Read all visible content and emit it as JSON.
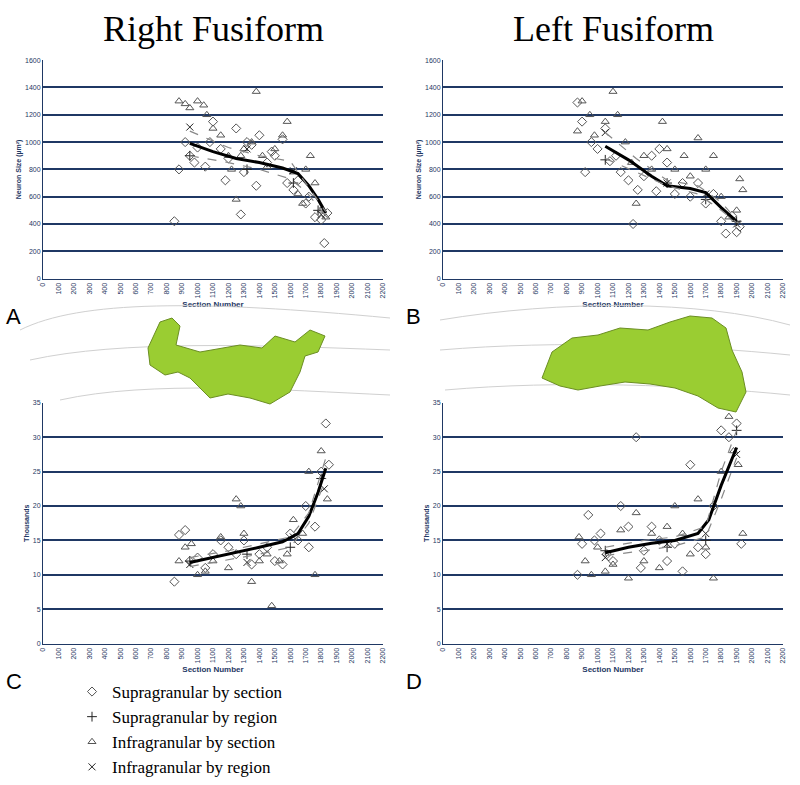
{
  "chart_data": [
    {
      "type": "scatter",
      "title": "Right Fusiform",
      "annotations": [
        "A"
      ],
      "xlabel": "Section Number",
      "ylabel": "Neuron Size (µm²)",
      "xlim": [
        0,
        2200
      ],
      "xticks": [
        0,
        100,
        200,
        300,
        400,
        500,
        600,
        700,
        800,
        900,
        1000,
        1100,
        1200,
        1300,
        1400,
        1500,
        1600,
        1700,
        1800,
        1900,
        2000,
        2100,
        2200
      ],
      "ylim": [
        0,
        1600
      ],
      "yticks": [
        0,
        200,
        400,
        600,
        800,
        1000,
        1200,
        1400,
        1600
      ],
      "grid": true,
      "series": [
        {
          "name": "Supragranular by section",
          "marker": "diamond-open",
          "color": "#555555",
          "x": [
            850,
            880,
            920,
            950,
            980,
            1000,
            1050,
            1080,
            1100,
            1150,
            1180,
            1200,
            1250,
            1280,
            1300,
            1320,
            1350,
            1380,
            1400,
            1450,
            1480,
            1500,
            1550,
            1580,
            1620,
            1650,
            1700,
            1720,
            1760,
            1800,
            1820,
            1840
          ],
          "values": [
            420,
            800,
            1000,
            900,
            850,
            960,
            820,
            1000,
            1150,
            950,
            720,
            880,
            1100,
            470,
            780,
            1000,
            980,
            680,
            1050,
            850,
            930,
            900,
            1020,
            700,
            650,
            720,
            550,
            600,
            450,
            430,
            260,
            480
          ]
        },
        {
          "name": "Supragranular by region",
          "marker": "cross-thin-open",
          "color": "#222222",
          "x": [
            950,
            1320,
            1620,
            1780
          ],
          "values": [
            900,
            800,
            700,
            500
          ]
        },
        {
          "name": "Infragranular by section",
          "marker": "triangle-up-open",
          "color": "#555555",
          "x": [
            880,
            920,
            950,
            1000,
            1040,
            1060,
            1100,
            1150,
            1200,
            1220,
            1250,
            1280,
            1300,
            1350,
            1380,
            1420,
            1450,
            1500,
            1550,
            1580,
            1620,
            1650,
            1680,
            1700,
            1730,
            1760,
            1800,
            1830
          ],
          "values": [
            1300,
            1280,
            1250,
            1300,
            1270,
            1200,
            1100,
            1050,
            900,
            800,
            580,
            900,
            950,
            1000,
            1370,
            900,
            820,
            950,
            1050,
            1150,
            780,
            620,
            550,
            800,
            900,
            700,
            500,
            450
          ]
        },
        {
          "name": "Infragranular by region",
          "marker": "x-thin-open",
          "color": "#222222",
          "x": [
            950,
            1320,
            1620,
            1800
          ],
          "values": [
            1110,
            950,
            790,
            470
          ]
        },
        {
          "type": "line",
          "line_style": "solid",
          "color": "#000000",
          "x": [
            950,
            1100,
            1250,
            1400,
            1550,
            1650,
            1720,
            1780,
            1830
          ],
          "values": [
            990,
            930,
            880,
            850,
            810,
            770,
            680,
            580,
            480
          ]
        },
        {
          "type": "line",
          "line_style": "dash",
          "color": "#888888",
          "x": [
            950,
            1200,
            1400,
            1600,
            1700,
            1830
          ],
          "values": [
            900,
            850,
            800,
            730,
            640,
            460
          ]
        },
        {
          "type": "line",
          "line_style": "dash",
          "color": "#888888",
          "x": [
            950,
            1200,
            1400,
            1600,
            1700,
            1830
          ],
          "values": [
            1080,
            960,
            900,
            860,
            700,
            490
          ]
        }
      ]
    },
    {
      "type": "scatter",
      "title": "Left Fusiform",
      "annotations": [
        "B"
      ],
      "xlabel": "Section Number",
      "ylabel": "Neuron Size (µm²)",
      "xlim": [
        0,
        2200
      ],
      "xticks": [
        0,
        100,
        200,
        300,
        400,
        500,
        600,
        700,
        800,
        900,
        1000,
        1100,
        1200,
        1300,
        1400,
        1500,
        1600,
        1700,
        1800,
        1900,
        2000,
        2100,
        2200
      ],
      "ylim": [
        0,
        1600
      ],
      "yticks": [
        0,
        200,
        400,
        600,
        800,
        1000,
        1200,
        1400,
        1600
      ],
      "grid": true,
      "series": [
        {
          "name": "Supragranular by section",
          "marker": "diamond-open",
          "color": "#555555",
          "x": [
            870,
            900,
            920,
            960,
            1000,
            1050,
            1080,
            1120,
            1150,
            1200,
            1230,
            1260,
            1300,
            1350,
            1380,
            1400,
            1450,
            1500,
            1550,
            1600,
            1650,
            1700,
            1750,
            1800,
            1830,
            1870,
            1900,
            1920
          ],
          "values": [
            1290,
            1150,
            780,
            1000,
            950,
            1100,
            860,
            900,
            780,
            720,
            400,
            650,
            750,
            900,
            640,
            950,
            850,
            620,
            700,
            600,
            700,
            550,
            620,
            420,
            330,
            460,
            340,
            380
          ]
        },
        {
          "name": "Supragranular by region",
          "marker": "cross-thin-open",
          "color": "#222222",
          "x": [
            1050,
            1450,
            1700,
            1900
          ],
          "values": [
            870,
            700,
            580,
            420
          ]
        },
        {
          "name": "Infragranular by section",
          "marker": "triangle-up-open",
          "color": "#555555",
          "x": [
            870,
            900,
            950,
            980,
            1050,
            1100,
            1130,
            1180,
            1220,
            1250,
            1300,
            1350,
            1420,
            1450,
            1500,
            1560,
            1600,
            1650,
            1700,
            1750,
            1800,
            1850,
            1900,
            1920,
            1940
          ],
          "values": [
            1080,
            1300,
            1200,
            1050,
            1150,
            1370,
            1200,
            1000,
            850,
            550,
            900,
            800,
            1150,
            950,
            800,
            900,
            750,
            1030,
            800,
            900,
            600,
            450,
            500,
            730,
            650
          ]
        },
        {
          "name": "Infragranular by region",
          "marker": "x-thin-open",
          "color": "#222222",
          "x": [
            1050,
            1450,
            1700,
            1900
          ],
          "values": [
            1070,
            700,
            620,
            400
          ]
        },
        {
          "type": "line",
          "line_style": "solid",
          "color": "#000000",
          "x": [
            1050,
            1200,
            1350,
            1450,
            1600,
            1700,
            1800,
            1900
          ],
          "values": [
            970,
            870,
            750,
            680,
            660,
            630,
            520,
            420
          ]
        },
        {
          "type": "line",
          "line_style": "dash",
          "color": "#888888",
          "x": [
            1050,
            1250,
            1450,
            1650,
            1800,
            1900
          ],
          "values": [
            880,
            780,
            680,
            620,
            500,
            410
          ]
        },
        {
          "type": "line",
          "line_style": "dash",
          "color": "#888888",
          "x": [
            1050,
            1250,
            1450,
            1650,
            1800,
            1900
          ],
          "values": [
            1070,
            880,
            720,
            680,
            560,
            430
          ]
        }
      ]
    },
    {
      "type": "scatter",
      "annotations": [
        "C"
      ],
      "xlabel": "Section Number",
      "ylabel": "Thousands",
      "xlim": [
        0,
        2200
      ],
      "xticks": [
        0,
        100,
        200,
        300,
        400,
        500,
        600,
        700,
        800,
        900,
        1000,
        1100,
        1200,
        1300,
        1400,
        1500,
        1600,
        1700,
        1800,
        1900,
        2000,
        2100,
        2200
      ],
      "ylim": [
        0,
        35
      ],
      "yticks": [
        0,
        5,
        10,
        15,
        20,
        25,
        30,
        35
      ],
      "grid": true,
      "series": [
        {
          "name": "Supragranular by section",
          "marker": "diamond-open",
          "color": "#555555",
          "x": [
            850,
            880,
            920,
            950,
            1000,
            1050,
            1100,
            1150,
            1200,
            1250,
            1300,
            1350,
            1400,
            1450,
            1500,
            1550,
            1600,
            1650,
            1700,
            1720,
            1760,
            1800,
            1830,
            1850
          ],
          "values": [
            9,
            15.8,
            16.5,
            12,
            12.5,
            11,
            13,
            15,
            14,
            13,
            15,
            11.5,
            13,
            14,
            12,
            11.5,
            16,
            15,
            20,
            14,
            17,
            25,
            32,
            26
          ]
        },
        {
          "name": "Supragranular by region",
          "marker": "cross-thin-open",
          "color": "#222222",
          "x": [
            950,
            1320,
            1600,
            1800
          ],
          "values": [
            12,
            13,
            14,
            24
          ]
        },
        {
          "name": "Infragranular by section",
          "marker": "triangle-up-open",
          "color": "#555555",
          "x": [
            880,
            920,
            960,
            1000,
            1050,
            1100,
            1150,
            1200,
            1250,
            1280,
            1300,
            1350,
            1400,
            1450,
            1480,
            1530,
            1580,
            1620,
            1680,
            1720,
            1760,
            1800,
            1840
          ],
          "values": [
            12,
            14,
            14.5,
            10,
            10.5,
            12,
            15.5,
            11,
            21,
            20,
            16,
            9,
            12,
            13,
            5.5,
            12,
            13,
            18,
            16,
            25,
            10,
            28,
            21
          ]
        },
        {
          "name": "Infragranular by region",
          "marker": "x-thin-open",
          "color": "#222222",
          "x": [
            950,
            1320,
            1620,
            1820
          ],
          "values": [
            11.5,
            11.8,
            15.5,
            22.5
          ]
        },
        {
          "type": "line",
          "line_style": "solid",
          "color": "#000000",
          "x": [
            950,
            1100,
            1250,
            1400,
            1550,
            1650,
            1720,
            1780,
            1830
          ],
          "values": [
            11.8,
            12.5,
            13.3,
            14,
            14.8,
            16,
            18.5,
            22,
            25.5
          ]
        },
        {
          "type": "line",
          "line_style": "dash",
          "color": "#888888",
          "x": [
            950,
            1200,
            1400,
            1600,
            1720,
            1830
          ],
          "values": [
            12.5,
            13.5,
            14.5,
            15.5,
            19,
            27
          ]
        },
        {
          "type": "line",
          "line_style": "dash",
          "color": "#888888",
          "x": [
            950,
            1200,
            1400,
            1600,
            1720,
            1830
          ],
          "values": [
            11.2,
            12.2,
            13,
            14,
            17.5,
            24
          ]
        }
      ]
    },
    {
      "type": "scatter",
      "annotations": [
        "D"
      ],
      "xlabel": "Section Number",
      "ylabel": "Thousands",
      "xlim": [
        0,
        2200
      ],
      "xticks": [
        0,
        100,
        200,
        300,
        400,
        500,
        600,
        700,
        800,
        900,
        1000,
        1100,
        1200,
        1300,
        1400,
        1500,
        1600,
        1700,
        1800,
        1900,
        2000,
        2100,
        2200
      ],
      "ylim": [
        0,
        35
      ],
      "yticks": [
        0,
        5,
        10,
        15,
        20,
        25,
        30,
        35
      ],
      "grid": true,
      "series": [
        {
          "name": "Supragranular by section",
          "marker": "diamond-open",
          "color": "#555555",
          "x": [
            870,
            900,
            940,
            980,
            1020,
            1060,
            1100,
            1150,
            1200,
            1250,
            1280,
            1300,
            1350,
            1400,
            1450,
            1500,
            1550,
            1600,
            1650,
            1700,
            1750,
            1800,
            1850,
            1900,
            1930
          ],
          "values": [
            10,
            14.5,
            18.7,
            15,
            16,
            13,
            12,
            20,
            17,
            30,
            11,
            13.5,
            17,
            15,
            12,
            14.5,
            10.5,
            26,
            14,
            13,
            20,
            31,
            30,
            32,
            14.5
          ]
        },
        {
          "name": "Supragranular by region",
          "marker": "cross-thin-open",
          "color": "#222222",
          "x": [
            1050,
            1450,
            1700,
            1900
          ],
          "values": [
            13.5,
            14,
            15,
            31
          ]
        },
        {
          "name": "Infragranular by section",
          "marker": "triangle-up-open",
          "color": "#555555",
          "x": [
            880,
            920,
            960,
            1000,
            1050,
            1100,
            1150,
            1200,
            1250,
            1300,
            1350,
            1400,
            1450,
            1500,
            1550,
            1600,
            1650,
            1700,
            1750,
            1800,
            1850,
            1880,
            1910,
            1940
          ],
          "values": [
            15.5,
            12,
            10,
            14,
            10.5,
            11.5,
            16.5,
            9.5,
            19,
            12,
            16,
            11,
            17,
            20,
            16,
            13,
            21,
            14,
            9.5,
            25,
            33,
            28,
            26,
            16
          ]
        },
        {
          "name": "Infragranular by region",
          "marker": "x-thin-open",
          "color": "#222222",
          "x": [
            1050,
            1450,
            1700,
            1900
          ],
          "values": [
            12.5,
            14.5,
            16,
            27.5
          ]
        },
        {
          "type": "line",
          "line_style": "solid",
          "color": "#000000",
          "x": [
            1050,
            1200,
            1350,
            1500,
            1650,
            1720,
            1800,
            1900
          ],
          "values": [
            13.2,
            14,
            14.6,
            15,
            16,
            18,
            23,
            28.5
          ]
        },
        {
          "type": "line",
          "line_style": "dash",
          "color": "#888888",
          "x": [
            1050,
            1300,
            1500,
            1700,
            1800,
            1900
          ],
          "values": [
            14,
            15,
            15.5,
            17,
            25,
            31
          ]
        },
        {
          "type": "line",
          "line_style": "dash",
          "color": "#888888",
          "x": [
            1050,
            1300,
            1500,
            1700,
            1800,
            1900
          ],
          "values": [
            12.8,
            13.5,
            14.2,
            15.5,
            21,
            27
          ]
        }
      ]
    }
  ]
}
